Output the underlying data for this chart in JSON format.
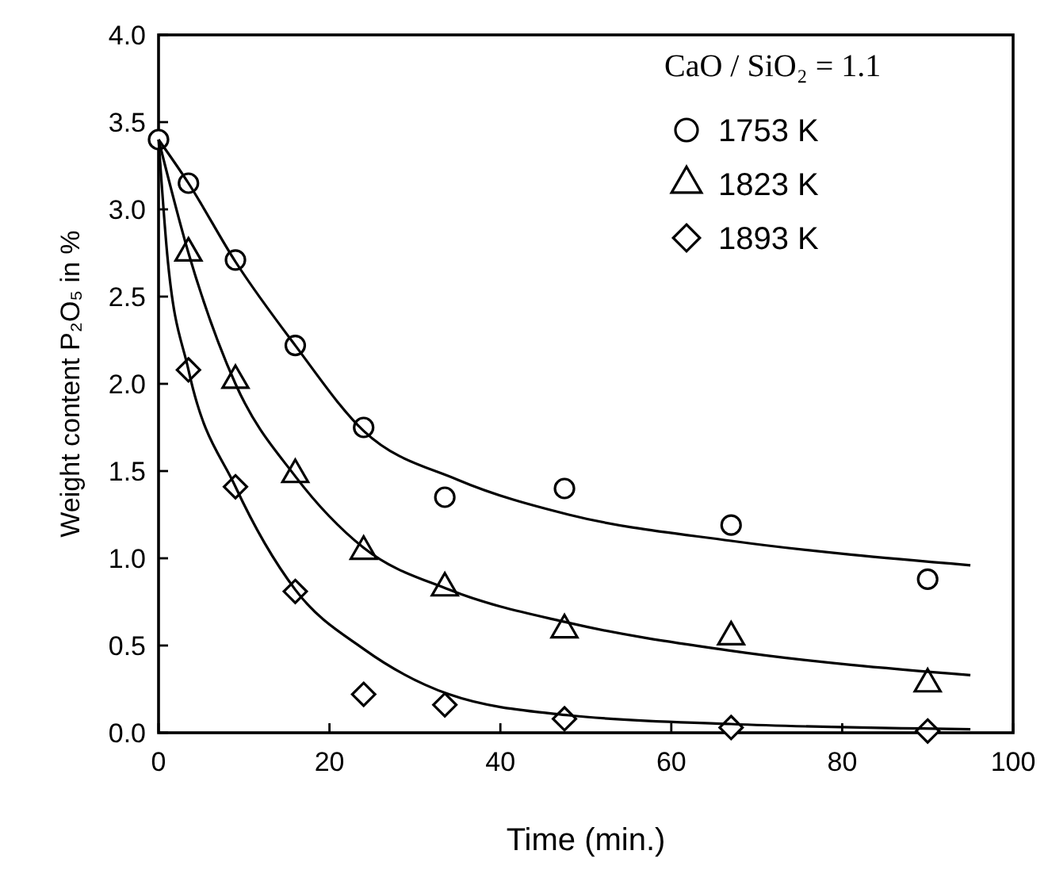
{
  "chart_data": {
    "type": "scatter",
    "xlabel": "Time (min.)",
    "ylabel": "Weight content P₂O₅ in %",
    "legend_title": "CaO / SiO₂ = 1.1",
    "xlim": [
      0,
      100
    ],
    "xticks": [
      0,
      20,
      40,
      60,
      80,
      100
    ],
    "ylim": [
      0,
      4
    ],
    "yticks": [
      {
        "value": 0,
        "label": "0.0"
      },
      {
        "value": 0.5,
        "label": "0.5"
      },
      {
        "value": 1,
        "label": "1.0"
      },
      {
        "value": 1.5,
        "label": "1.5"
      },
      {
        "value": 2,
        "label": "2.0"
      },
      {
        "value": 2.5,
        "label": "2.5"
      },
      {
        "value": 3,
        "label": "3.0"
      },
      {
        "value": 3.5,
        "label": "3.5"
      },
      {
        "value": 4,
        "label": "4.0"
      }
    ],
    "grid": false,
    "legend": "top right",
    "series": [
      {
        "name": "1753 K",
        "color": "#000000",
        "marker": "circle",
        "x": [
          0,
          3.5,
          9,
          16,
          24,
          33.5,
          47.5,
          67,
          90
        ],
        "values": [
          3.4,
          3.15,
          2.71,
          2.22,
          1.75,
          1.35,
          1.4,
          1.19,
          0.88
        ]
      },
      {
        "name": "1823 K",
        "color": "#000000",
        "marker": "triangle",
        "x": [
          3.5,
          9,
          16,
          24,
          33.5,
          47.5,
          67,
          90
        ],
        "values": [
          2.75,
          2.02,
          1.48,
          1.04,
          0.83,
          0.59,
          0.55,
          0.28
        ]
      },
      {
        "name": "1893 K",
        "color": "#000000",
        "marker": "diamond",
        "x": [
          3.5,
          9,
          16,
          24,
          33.5,
          47.5,
          67,
          90
        ],
        "values": [
          2.08,
          1.41,
          0.81,
          0.22,
          0.16,
          0.08,
          0.03,
          0.01
        ]
      },
      {
        "type": "line",
        "color": "#000000",
        "marker": "none",
        "x": [
          0,
          3.5,
          9,
          16,
          24,
          35,
          48,
          67,
          95
        ],
        "values": [
          3.4,
          3.15,
          2.7,
          2.22,
          1.73,
          1.45,
          1.25,
          1.1,
          0.96
        ]
      },
      {
        "type": "line",
        "color": "#000000",
        "marker": "none",
        "x": [
          0,
          3.5,
          9,
          16,
          24,
          34,
          48,
          67,
          95
        ],
        "values": [
          3.4,
          2.75,
          2.0,
          1.47,
          1.06,
          0.82,
          0.63,
          0.47,
          0.33
        ]
      },
      {
        "type": "line",
        "color": "#000000",
        "marker": "none",
        "x": [
          0,
          1,
          3.5,
          9,
          16,
          24,
          34,
          48,
          67,
          95
        ],
        "values": [
          3.4,
          2.75,
          2.08,
          1.41,
          0.82,
          0.48,
          0.22,
          0.1,
          0.05,
          0.02
        ]
      }
    ]
  }
}
